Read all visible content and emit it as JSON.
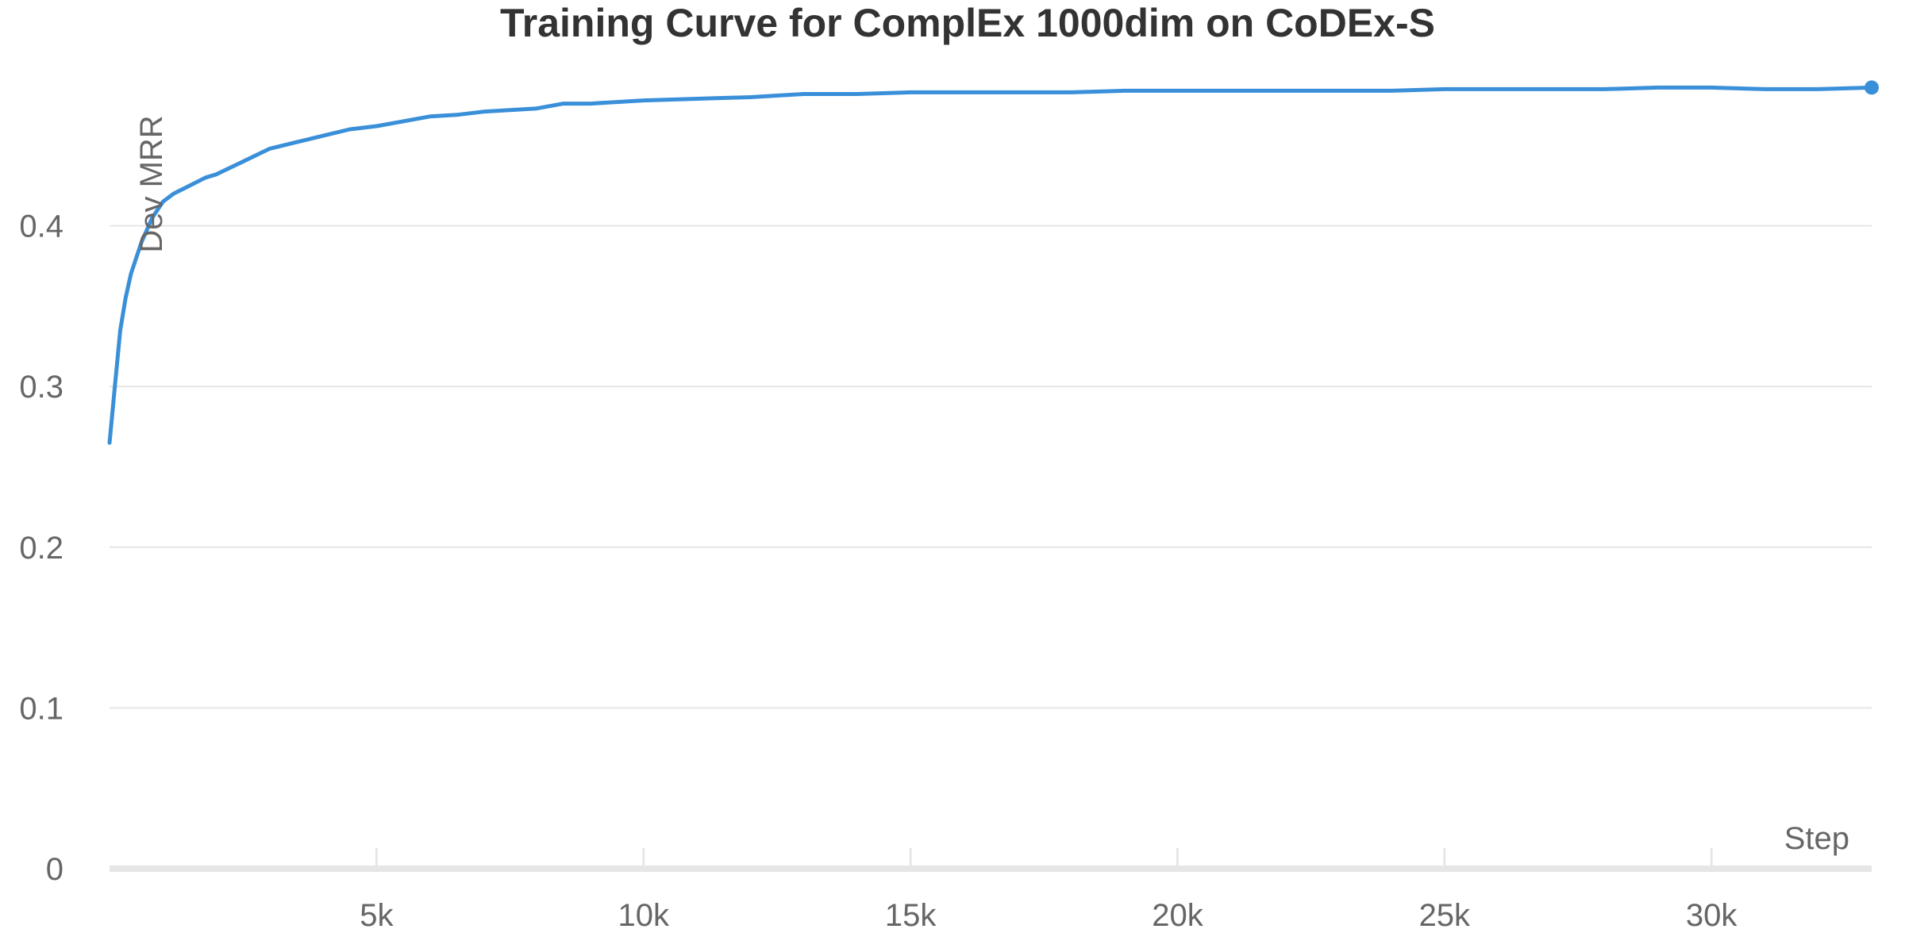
{
  "chart_data": {
    "type": "line",
    "title": "Training Curve for ComplEx 1000dim on CoDEx-S",
    "xlabel": "Step",
    "ylabel": "Dev MRR",
    "xlim": [
      0,
      33000
    ],
    "ylim": [
      0,
      0.5
    ],
    "x_ticks": [
      5000,
      10000,
      15000,
      20000,
      25000,
      30000
    ],
    "x_tick_labels": [
      "5k",
      "10k",
      "15k",
      "20k",
      "25k",
      "30k"
    ],
    "y_ticks": [
      0,
      0.1,
      0.2,
      0.3,
      0.4
    ],
    "y_tick_labels": [
      "0",
      "0.1",
      "0.2",
      "0.3",
      "0.4"
    ],
    "grid": true,
    "end_marker": true,
    "series": [
      {
        "color": "#3a8fd9",
        "x": [
          0,
          100,
          200,
          300,
          400,
          500,
          600,
          800,
          1000,
          1200,
          1500,
          1800,
          2000,
          2500,
          3000,
          3500,
          4000,
          4500,
          5000,
          5500,
          6000,
          6500,
          7000,
          7500,
          8000,
          8500,
          9000,
          10000,
          11000,
          12000,
          13000,
          14000,
          15000,
          16000,
          17000,
          18000,
          19000,
          20000,
          21000,
          22000,
          23000,
          24000,
          25000,
          26000,
          27000,
          28000,
          29000,
          30000,
          31000,
          32000,
          33000
        ],
        "y": [
          0.265,
          0.3,
          0.335,
          0.355,
          0.37,
          0.38,
          0.39,
          0.405,
          0.415,
          0.42,
          0.425,
          0.43,
          0.432,
          0.44,
          0.448,
          0.452,
          0.456,
          0.46,
          0.462,
          0.465,
          0.468,
          0.469,
          0.471,
          0.472,
          0.473,
          0.476,
          0.476,
          0.478,
          0.479,
          0.48,
          0.482,
          0.482,
          0.483,
          0.483,
          0.483,
          0.483,
          0.484,
          0.484,
          0.484,
          0.484,
          0.484,
          0.484,
          0.485,
          0.485,
          0.485,
          0.485,
          0.486,
          0.486,
          0.485,
          0.485,
          0.486
        ]
      }
    ]
  }
}
